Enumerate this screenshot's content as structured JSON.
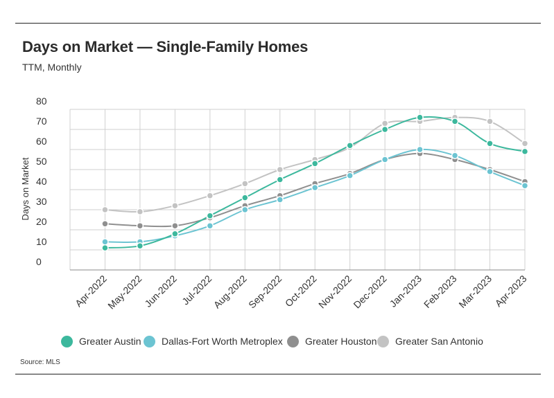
{
  "header": {
    "title": "Days on Market — Single-Family Homes",
    "subtitle": "TTM, Monthly"
  },
  "footer": {
    "source": "Source:  MLS"
  },
  "chart_data": {
    "type": "line",
    "title": "Days on Market — Single-Family Homes",
    "subtitle": "TTM, Monthly",
    "xlabel": "",
    "ylabel": "Days on Market",
    "ylim": [
      0,
      80
    ],
    "yticks": [
      0,
      10,
      20,
      30,
      40,
      50,
      60,
      70,
      80
    ],
    "grid": true,
    "legend_position": "bottom",
    "categories": [
      "Apr-2022",
      "May-2022",
      "Jun-2022",
      "Jul-2022",
      "Aug-2022",
      "Sep-2022",
      "Oct-2022",
      "Nov-2022",
      "Dec-2022",
      "Jan-2023",
      "Feb-2023",
      "Mar-2023",
      "Apr-2023"
    ],
    "series": [
      {
        "name": "Greater Austin",
        "color": "#3cb89d",
        "values": [
          11,
          12,
          18,
          27,
          36,
          45,
          53,
          62,
          70,
          76,
          74,
          63,
          59
        ]
      },
      {
        "name": "Dallas-Fort Worth Metroplex",
        "color": "#6cc4d2",
        "values": [
          14,
          14,
          17,
          22,
          30,
          35,
          41,
          47,
          55,
          60,
          57,
          49,
          42
        ]
      },
      {
        "name": "Greater Houston",
        "color": "#8f8f8f",
        "values": [
          23,
          22,
          22,
          26,
          32,
          37,
          43,
          48,
          55,
          58,
          55,
          50,
          44
        ]
      },
      {
        "name": "Greater San Antonio",
        "color": "#c3c3c3",
        "values": [
          30,
          29,
          32,
          37,
          43,
          50,
          55,
          61,
          73,
          74,
          76,
          74,
          63
        ]
      }
    ]
  }
}
